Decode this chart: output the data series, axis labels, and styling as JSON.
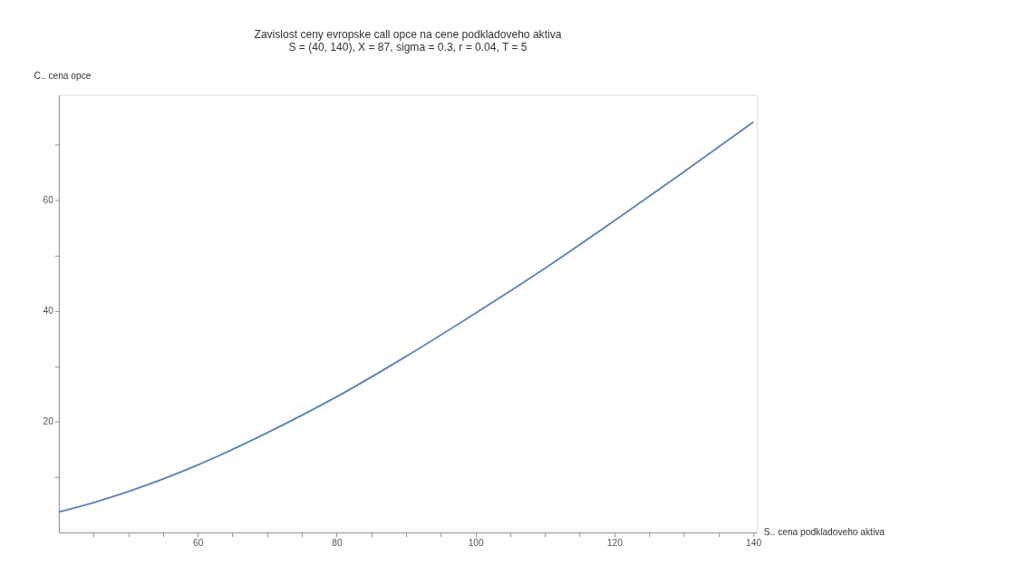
{
  "chart_data": {
    "type": "line",
    "title": "Zavislost ceny evropske call opce na cene podkladoveho aktiva",
    "subtitle": "S = (40, 140), X = 87, sigma = 0.3, r = 0.04, T = 5",
    "xlabel": "S.. cena podkladoveho aktiva",
    "ylabel": "C.. cena opce",
    "x": [
      40,
      45,
      50,
      60,
      70,
      80,
      90,
      100,
      110,
      120,
      130,
      140
    ],
    "series": [
      {
        "color": "#5e81b5",
        "values": [
          3.7,
          5.4,
          7.4,
          12.2,
          18.0,
          24.5,
          31.8,
          39.6,
          47.7,
          56.3,
          65.1,
          74.1
        ]
      }
    ],
    "xlim": [
      40,
      140.5
    ],
    "ylim": [
      0,
      79
    ],
    "xticks": [
      {
        "value": 45,
        "label": null
      },
      {
        "value": 50,
        "label": null
      },
      {
        "value": 55,
        "label": null
      },
      60,
      {
        "value": 65,
        "label": null
      },
      {
        "value": 70,
        "label": null
      },
      {
        "value": 75,
        "label": null
      },
      80,
      {
        "value": 85,
        "label": null
      },
      {
        "value": 90,
        "label": null
      },
      {
        "value": 95,
        "label": null
      },
      100,
      {
        "value": 105,
        "label": null
      },
      {
        "value": 110,
        "label": null
      },
      {
        "value": 115,
        "label": null
      },
      120,
      {
        "value": 125,
        "label": null
      },
      {
        "value": 130,
        "label": null
      },
      {
        "value": 135,
        "label": null
      },
      140
    ],
    "yticks": [
      {
        "value": 10,
        "label": null
      },
      20,
      {
        "value": 30,
        "label": null
      },
      40,
      {
        "value": 50,
        "label": null
      },
      60,
      {
        "value": 70,
        "label": null
      }
    ],
    "grid": false,
    "marker": "none",
    "line_style": "solid"
  }
}
